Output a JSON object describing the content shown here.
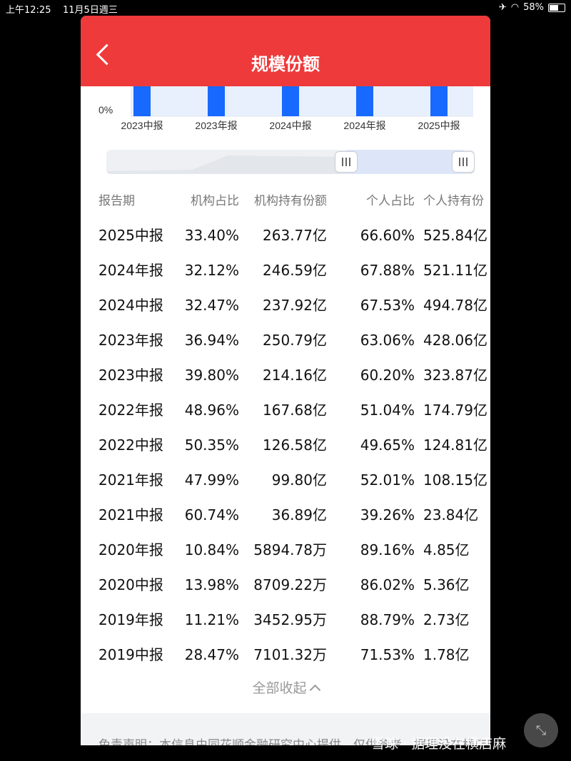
{
  "status_bar": {
    "time": "上午12:25",
    "date": "11月5日週三",
    "battery": "58%",
    "battery_level": 0.58
  },
  "page": {
    "title": "规模份额"
  },
  "chart": {
    "y_label": "0%",
    "categories": [
      "2023中报",
      "2023年报",
      "2024中报",
      "2024年报",
      "2025中报"
    ],
    "colors": {
      "bar": "#1769ff",
      "band": "#e8f0fe"
    }
  },
  "table": {
    "headers": [
      "报告期",
      "机构占比",
      "机构持有份额",
      "个人占比",
      "个人持有份"
    ],
    "rows": [
      [
        "2025中报",
        "33.40%",
        "263.77亿",
        "66.60%",
        "525.84亿"
      ],
      [
        "2024年报",
        "32.12%",
        "246.59亿",
        "67.88%",
        "521.11亿"
      ],
      [
        "2024中报",
        "32.47%",
        "237.92亿",
        "67.53%",
        "494.78亿"
      ],
      [
        "2023年报",
        "36.94%",
        "250.79亿",
        "63.06%",
        "428.06亿"
      ],
      [
        "2023中报",
        "39.80%",
        "214.16亿",
        "60.20%",
        "323.87亿"
      ],
      [
        "2022年报",
        "48.96%",
        "167.68亿",
        "51.04%",
        "174.79亿"
      ],
      [
        "2022中报",
        "50.35%",
        "126.58亿",
        "49.65%",
        "124.81亿"
      ],
      [
        "2021年报",
        "47.99%",
        "99.80亿",
        "52.01%",
        "108.15亿"
      ],
      [
        "2021中报",
        "60.74%",
        "36.89亿",
        "39.26%",
        "23.84亿"
      ],
      [
        "2020年报",
        "10.84%",
        "5894.78万",
        "89.16%",
        "4.85亿"
      ],
      [
        "2020中报",
        "13.98%",
        "8709.22万",
        "86.02%",
        "5.36亿"
      ],
      [
        "2019年报",
        "11.21%",
        "3452.95万",
        "88.79%",
        "2.73亿"
      ],
      [
        "2019中报",
        "28.47%",
        "7101.32万",
        "71.53%",
        "1.78亿"
      ]
    ]
  },
  "collapse_label": "全部收起",
  "disclaimer": "免责声明：本信息由同花顺金融研究中心提供，仅供参考，据理没在横店麻",
  "watermark": "雪球 · 据理没在横店麻",
  "accent_color": "#ee3a3b"
}
